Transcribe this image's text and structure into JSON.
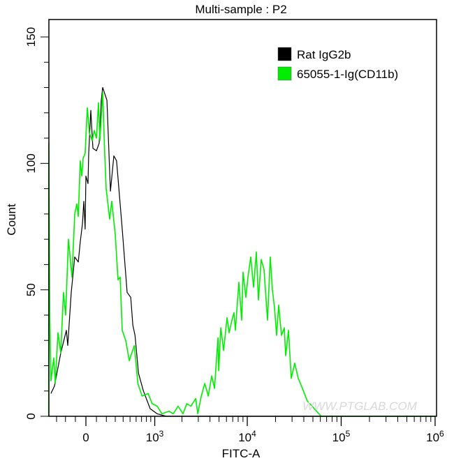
{
  "chart_data": {
    "type": "line",
    "title": "Multi-sample : P2",
    "xlabel": "FITC-A",
    "ylabel": "Count",
    "x_scale": "biexponential",
    "xlim": [
      -400,
      1000000
    ],
    "ylim": [
      0,
      150
    ],
    "grid": false,
    "legend_placement": "top-right",
    "x_ticks": [
      {
        "value": 0,
        "base": "0",
        "exp": ""
      },
      {
        "value": 1000,
        "base": "10",
        "exp": "3"
      },
      {
        "value": 10000,
        "base": "10",
        "exp": "4"
      },
      {
        "value": 100000,
        "base": "10",
        "exp": "5"
      },
      {
        "value": 1000000,
        "base": "10",
        "exp": "6"
      }
    ],
    "y_ticks": [
      "0",
      "50",
      "100",
      "150"
    ],
    "watermark": "WWW.PTGLAB.COM",
    "series": [
      {
        "name": "Rat IgG2b",
        "color": "#000000",
        "points": [
          [
            -370,
            9
          ],
          [
            -325,
            12
          ],
          [
            -251,
            25
          ],
          [
            -191,
            34
          ],
          [
            -176,
            28
          ],
          [
            -141,
            49
          ],
          [
            -106,
            63
          ],
          [
            -72,
            61
          ],
          [
            -53,
            69
          ],
          [
            -33,
            76
          ],
          [
            -20,
            85
          ],
          [
            -7,
            74
          ],
          [
            0,
            95
          ],
          [
            20,
            92
          ],
          [
            26,
            104
          ],
          [
            46,
            121
          ],
          [
            66,
            106
          ],
          [
            100,
            105
          ],
          [
            127,
            108
          ],
          [
            148,
            125
          ],
          [
            162,
            130
          ],
          [
            206,
            125
          ],
          [
            244,
            89
          ],
          [
            283,
            103
          ],
          [
            316,
            101
          ],
          [
            388,
            74
          ],
          [
            456,
            49
          ],
          [
            511,
            47
          ],
          [
            545,
            36
          ],
          [
            581,
            32
          ],
          [
            643,
            17
          ],
          [
            737,
            10
          ],
          [
            885,
            3
          ],
          [
            1065,
            1
          ],
          [
            1343,
            0
          ],
          [
            1000000,
            0
          ]
        ]
      },
      {
        "name": "65055-1-Ig(CD11b)",
        "color": "#00ee00",
        "points": [
          [
            -400,
            0
          ],
          [
            -398,
            108
          ],
          [
            -385,
            40
          ],
          [
            -370,
            14
          ],
          [
            -334,
            23
          ],
          [
            -316,
            13
          ],
          [
            -283,
            33
          ],
          [
            -251,
            25
          ],
          [
            -221,
            49
          ],
          [
            -198,
            40
          ],
          [
            -169,
            70
          ],
          [
            -134,
            55
          ],
          [
            -106,
            80
          ],
          [
            -86,
            84
          ],
          [
            -72,
            79
          ],
          [
            -53,
            101
          ],
          [
            -39,
            95
          ],
          [
            -26,
            102
          ],
          [
            -7,
            104
          ],
          [
            13,
            122
          ],
          [
            33,
            112
          ],
          [
            59,
            109
          ],
          [
            79,
            113
          ],
          [
            100,
            110
          ],
          [
            120,
            124
          ],
          [
            134,
            109
          ],
          [
            162,
            128
          ],
          [
            183,
            104
          ],
          [
            198,
            90
          ],
          [
            236,
            78
          ],
          [
            259,
            85
          ],
          [
            300,
            72
          ],
          [
            334,
            54
          ],
          [
            360,
            55
          ],
          [
            388,
            34
          ],
          [
            436,
            30
          ],
          [
            489,
            22
          ],
          [
            569,
            28
          ],
          [
            631,
            13
          ],
          [
            710,
            8
          ],
          [
            839,
            9
          ],
          [
            934,
            5
          ],
          [
            1065,
            4
          ],
          [
            1207,
            1
          ],
          [
            1443,
            2
          ],
          [
            1606,
            1
          ],
          [
            1815,
            4
          ],
          [
            2050,
            1
          ],
          [
            2254,
            5
          ],
          [
            2497,
            4
          ],
          [
            2815,
            7
          ],
          [
            2964,
            1
          ],
          [
            3229,
            8
          ],
          [
            3518,
            13
          ],
          [
            3834,
            8
          ],
          [
            4175,
            16
          ],
          [
            4473,
            11
          ],
          [
            4870,
            31
          ],
          [
            4954,
            18
          ],
          [
            5218,
            35
          ],
          [
            5586,
            26
          ],
          [
            6086,
            39
          ],
          [
            6406,
            33
          ],
          [
            6861,
            38
          ],
          [
            7221,
            41
          ],
          [
            7472,
            34
          ],
          [
            8143,
            53
          ],
          [
            8717,
            38
          ],
          [
            9023,
            57
          ],
          [
            9661,
            47
          ],
          [
            10170,
            55
          ],
          [
            10890,
            63
          ],
          [
            11670,
            51
          ],
          [
            12490,
            65
          ],
          [
            13150,
            46
          ],
          [
            14090,
            62
          ],
          [
            15080,
            58
          ],
          [
            16430,
            38
          ],
          [
            17600,
            63
          ],
          [
            18520,
            50
          ],
          [
            19500,
            43
          ],
          [
            20530,
            32
          ],
          [
            21600,
            44
          ],
          [
            23150,
            32
          ],
          [
            24780,
            35
          ],
          [
            25640,
            24
          ],
          [
            27460,
            34
          ],
          [
            29410,
            15
          ],
          [
            32040,
            21
          ],
          [
            34890,
            15
          ],
          [
            38680,
            11
          ],
          [
            43600,
            6
          ],
          [
            49160,
            4
          ],
          [
            54500,
            2
          ],
          [
            61450,
            0
          ],
          [
            1000000,
            0
          ]
        ]
      }
    ]
  }
}
